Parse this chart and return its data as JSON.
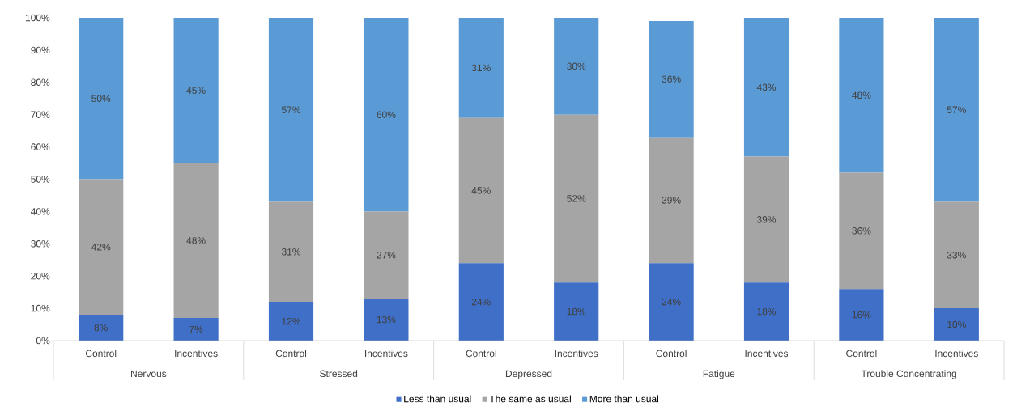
{
  "chart_data": {
    "type": "bar",
    "stacked": true,
    "legend": "bottom",
    "categories": [
      "Control",
      "Incentives",
      "Control",
      "Incentives",
      "Control",
      "Incentives",
      "Control",
      "Incentives",
      "Control",
      "Incentives"
    ],
    "annotations": [
      "Nervous",
      "Stressed",
      "Depressed",
      "Fatigue",
      "Trouble Concentrating"
    ],
    "ylim": [
      0,
      100
    ],
    "yticks": [
      {
        "value": 0,
        "label": "0%"
      },
      {
        "value": 10,
        "label": "10%"
      },
      {
        "value": 20,
        "label": "20%"
      },
      {
        "value": 30,
        "label": "30%"
      },
      {
        "value": 40,
        "label": "40%"
      },
      {
        "value": 50,
        "label": "50%"
      },
      {
        "value": 60,
        "label": "60%"
      },
      {
        "value": 70,
        "label": "70%"
      },
      {
        "value": 80,
        "label": "80%"
      },
      {
        "value": 90,
        "label": "90%"
      },
      {
        "value": 100,
        "label": "100%"
      }
    ],
    "series": [
      {
        "name": "Less than usual",
        "color": "#3f6fc6",
        "values": [
          8,
          7,
          12,
          13,
          24,
          18,
          24,
          18,
          16,
          10
        ],
        "value_labels": [
          "8%",
          "7%",
          "12%",
          "13%",
          "24%",
          "18%",
          "24%",
          "18%",
          "16%",
          "10%"
        ]
      },
      {
        "name": "The same as usual",
        "color": "#a5a5a5",
        "values": [
          42,
          48,
          31,
          27,
          45,
          52,
          39,
          39,
          36,
          33
        ],
        "value_labels": [
          "42%",
          "48%",
          "31%",
          "27%",
          "45%",
          "52%",
          "39%",
          "39%",
          "36%",
          "33%"
        ]
      },
      {
        "name": "More than usual",
        "color": "#5b9bd5",
        "values": [
          50,
          45,
          57,
          60,
          31,
          30,
          36,
          43,
          48,
          57
        ],
        "value_labels": [
          "50%",
          "45%",
          "57%",
          "60%",
          "31%",
          "30%",
          "36%",
          "43%",
          "48%",
          "57%"
        ]
      }
    ]
  }
}
